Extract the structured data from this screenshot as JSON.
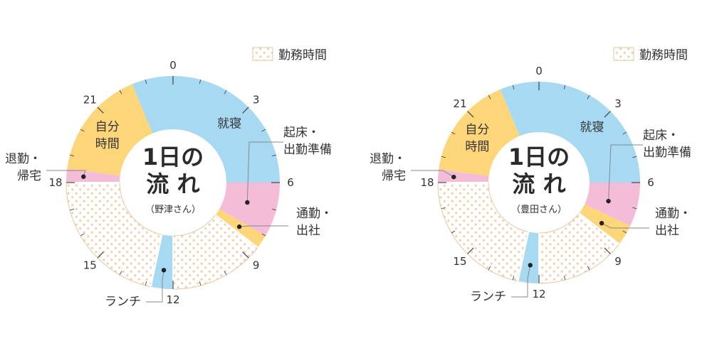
{
  "chart_data": [
    {
      "type": "donut",
      "title_lines": [
        "1日の",
        "流 れ"
      ],
      "subtitle": "（野津さん）",
      "legend": {
        "label": "勤務時間",
        "placement": "top-right"
      },
      "ticks": [
        "0",
        "3",
        "6",
        "9",
        "12",
        "15",
        "18",
        "21"
      ],
      "segments": [
        {
          "name": "就寝",
          "start": 0,
          "end": 6,
          "kind": "sleep",
          "label_lines": [
            "就寝"
          ]
        },
        {
          "name": "起床・出勤準備",
          "start": 6,
          "end": 8,
          "kind": "prep",
          "callout_lines": [
            "起床・",
            "出勤準備"
          ]
        },
        {
          "name": "通勤・出社",
          "start": 8,
          "end": 8.5,
          "kind": "commute",
          "callout_lines": [
            "通勤・",
            "出社"
          ]
        },
        {
          "name": "勤務時間",
          "start": 8.5,
          "end": 12,
          "kind": "work"
        },
        {
          "name": "ランチ",
          "start": 12,
          "end": 12.8,
          "kind": "lunch",
          "callout_lines": [
            "ランチ"
          ]
        },
        {
          "name": "勤務時間",
          "start": 12.8,
          "end": 18,
          "kind": "work"
        },
        {
          "name": "退勤・帰宅",
          "start": 18,
          "end": 18.5,
          "kind": "home",
          "callout_lines": [
            "退勤・",
            "帰宅"
          ]
        },
        {
          "name": "自分時間",
          "start": 18.5,
          "end": 22.5,
          "kind": "free",
          "label_lines": [
            "自分",
            "時間"
          ]
        },
        {
          "name": "就寝",
          "start": 22.5,
          "end": 24,
          "kind": "sleep"
        }
      ]
    },
    {
      "type": "donut",
      "title_lines": [
        "1日の",
        "流 れ"
      ],
      "subtitle": "（豊田さん）",
      "legend": {
        "label": "勤務時間",
        "placement": "top-right"
      },
      "ticks": [
        "0",
        "3",
        "6",
        "9",
        "12",
        "15",
        "18",
        "21"
      ],
      "segments": [
        {
          "name": "就寝",
          "start": 0,
          "end": 6,
          "kind": "sleep",
          "label_lines": [
            "就寝"
          ]
        },
        {
          "name": "起床・出勤準備",
          "start": 6,
          "end": 7.7,
          "kind": "prep",
          "callout_lines": [
            "起床・",
            "出勤準備"
          ]
        },
        {
          "name": "通勤・出社",
          "start": 7.7,
          "end": 8.5,
          "kind": "commute",
          "callout_lines": [
            "通勤・",
            "出社"
          ]
        },
        {
          "name": "勤務時間",
          "start": 8.5,
          "end": 12,
          "kind": "work"
        },
        {
          "name": "ランチ",
          "start": 12,
          "end": 12.8,
          "kind": "lunch",
          "callout_lines": [
            "ランチ"
          ]
        },
        {
          "name": "勤務時間",
          "start": 12.8,
          "end": 18,
          "kind": "work"
        },
        {
          "name": "退勤・帰宅",
          "start": 18,
          "end": 18.5,
          "kind": "home",
          "callout_lines": [
            "退勤・",
            "帰宅"
          ]
        },
        {
          "name": "自分時間",
          "start": 18.5,
          "end": 22.5,
          "kind": "free",
          "label_lines": [
            "自分",
            "時間"
          ]
        },
        {
          "name": "就寝",
          "start": 22.5,
          "end": 24,
          "kind": "sleep"
        }
      ]
    }
  ],
  "colors": {
    "sleep": "#a7d9f3",
    "prep": "#f4bcd6",
    "commute": "#fdd67a",
    "lunch": "#a7d9f3",
    "home": "#f4bcd6",
    "free": "#fdd67a",
    "work_dot": "#f2cfa7",
    "work_edge": "#e7c79f",
    "tick": "#444444",
    "callout": "#888888"
  }
}
